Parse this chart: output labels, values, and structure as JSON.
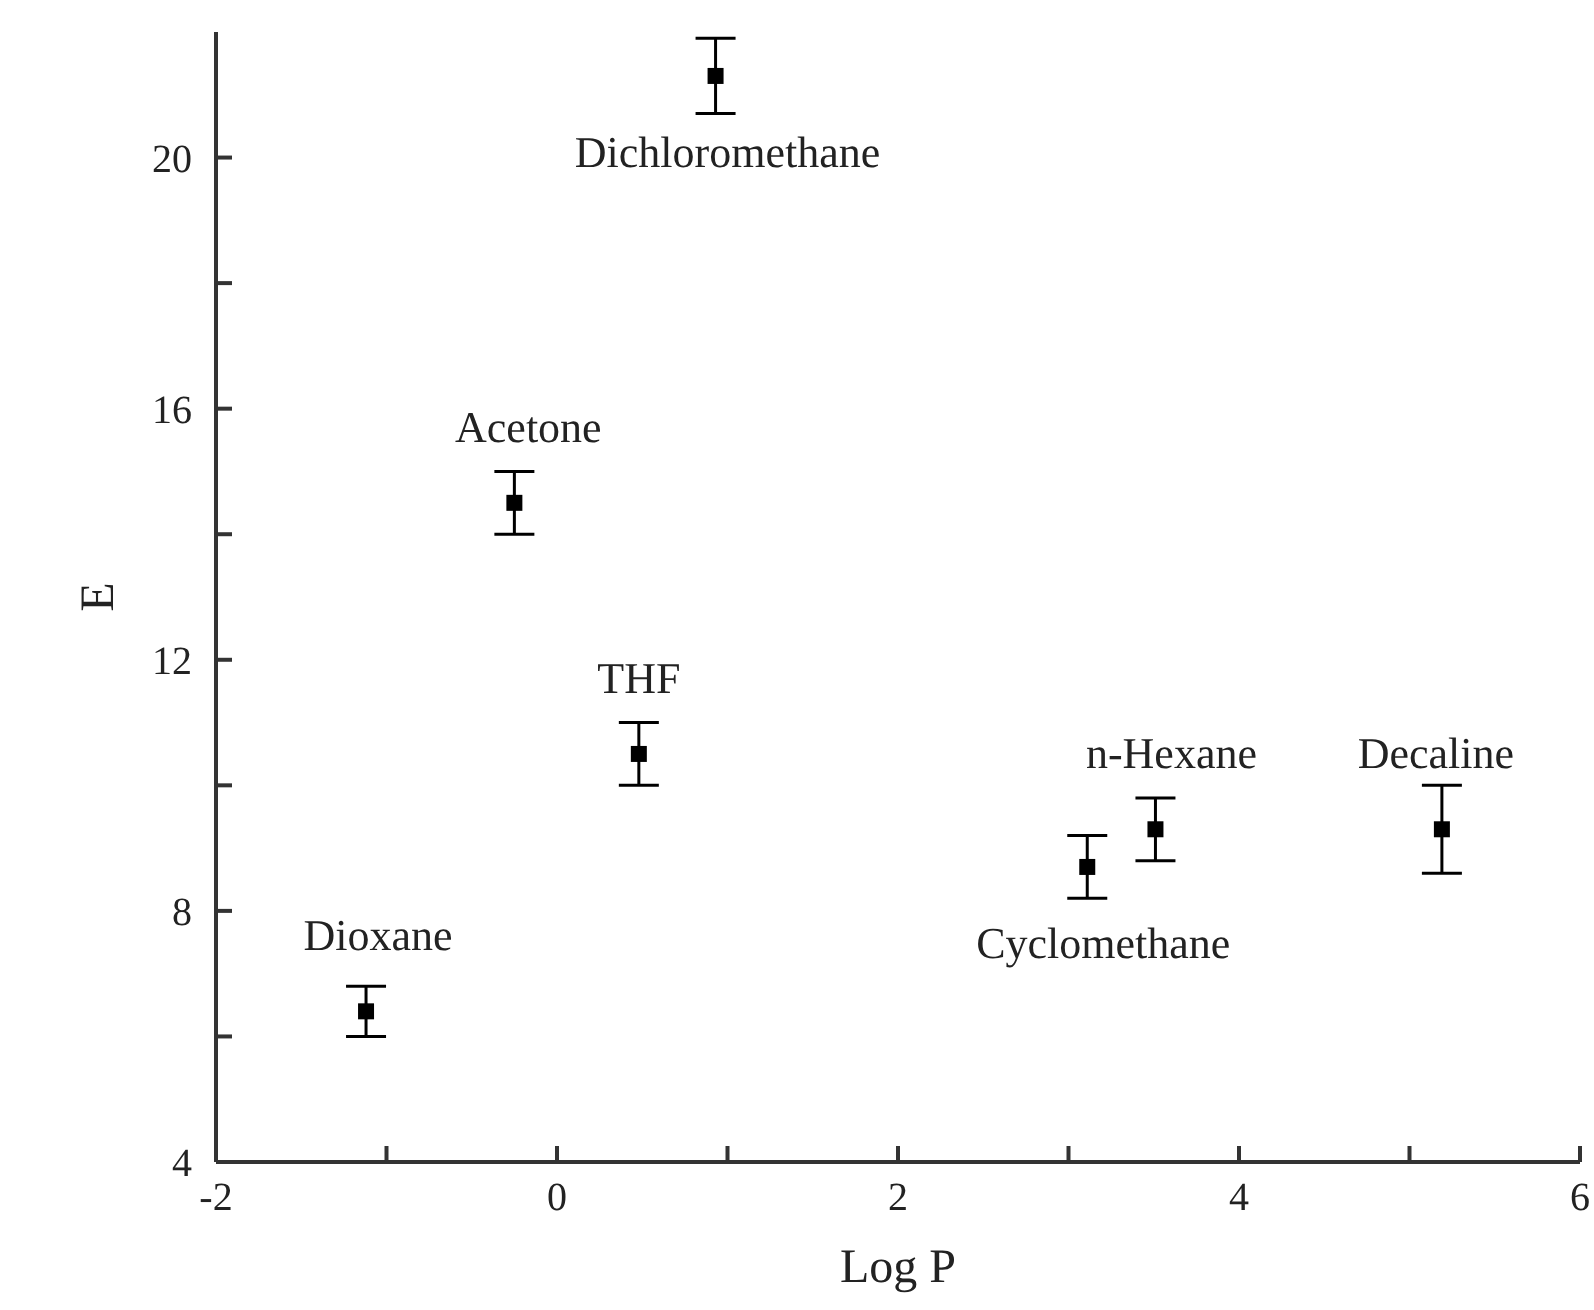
{
  "chart_data": {
    "type": "scatter",
    "xlabel": "Log P",
    "ylabel": "E",
    "x": [
      -1.12,
      -0.25,
      0.48,
      0.93,
      3.11,
      3.51,
      5.19
    ],
    "series": [
      {
        "color": "#000000",
        "values": [
          6.4,
          14.5,
          10.5,
          21.3,
          8.7,
          9.3,
          9.3
        ],
        "errors": [
          0.4,
          0.5,
          0.5,
          0.6,
          0.5,
          0.5,
          0.7
        ]
      }
    ],
    "marker": "square",
    "grid": false,
    "legend": false,
    "xlim": [
      -2,
      6
    ],
    "xticks": [
      -2,
      {
        "value": -1,
        "label": null
      },
      0,
      {
        "value": 1,
        "label": null
      },
      2,
      {
        "value": 3,
        "label": null
      },
      4,
      {
        "value": 5,
        "label": null
      },
      6
    ],
    "ylim": [
      4,
      22
    ],
    "yticks": [
      4,
      {
        "value": 6,
        "label": null
      },
      8,
      {
        "value": 10,
        "label": null
      },
      12,
      {
        "value": 14,
        "label": null
      },
      16,
      {
        "value": 18,
        "label": null
      },
      20
    ],
    "annotations": [
      {
        "text": "Dioxane",
        "x": -1.12,
        "y": 6.4
      },
      {
        "text": "Acetone",
        "x": -0.25,
        "y": 14.5
      },
      {
        "text": "THF",
        "x": 0.48,
        "y": 10.5
      },
      {
        "text": "Dichloromethane",
        "x": 0.93,
        "y": 21.3
      },
      {
        "text": "Cyclomethane",
        "x": 3.11,
        "y": 8.7
      },
      {
        "text": "n-Hexane",
        "x": 3.51,
        "y": 9.3
      },
      {
        "text": "Decaline",
        "x": 5.19,
        "y": 9.3
      }
    ]
  }
}
